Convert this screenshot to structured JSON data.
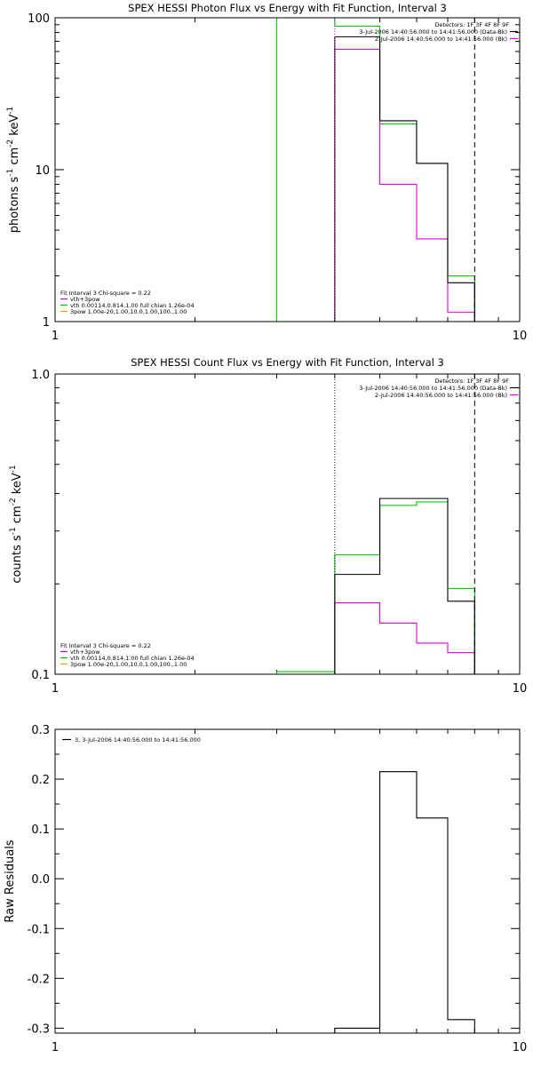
{
  "chart_data": [
    {
      "type": "line",
      "title": "SPEX HESSI Photon Flux vs Energy with Fit Function, Interval 3",
      "xlabel": "",
      "ylabel": "photons s⁻¹ cm⁻² keV⁻¹",
      "xscale": "log",
      "yscale": "log",
      "xlim": [
        1,
        10
      ],
      "ylim": [
        1,
        100
      ],
      "xtick_labels": [
        "1",
        "10"
      ],
      "ytick_labels": [
        "1",
        "10",
        "100"
      ],
      "x_edges": [
        3,
        4,
        5,
        6,
        7,
        8
      ],
      "series": [
        {
          "name": "3-Jul-2006 14:40:56.000 to 14:41:56.000 (Data-Bk)",
          "color": "#000000",
          "values": [
            null,
            75,
            21,
            11,
            1.8
          ]
        },
        {
          "name": "2-Jul-2006 14:40:56.000 to 14:41:56.000 (Bk)",
          "color": "#dd00dd",
          "values": [
            null,
            62,
            8,
            3.5,
            1.15
          ]
        },
        {
          "name": "vth+3pow",
          "color": "#00cc00",
          "values": [
            200,
            88,
            20,
            11,
            2
          ]
        }
      ],
      "legend_top": {
        "detectors": "Detectors: 1F 3F 4F 8F 9F",
        "placement": "top-right"
      },
      "legend_bottom": {
        "placement": "bottom-left",
        "header": "Fit Interval 3   Chi-square = 0.22",
        "entries": [
          {
            "label": "vth+3pow",
            "color": "#dd00dd"
          },
          {
            "label": "vth 0.00114,0.814,1.00   full chian 1.26e-04",
            "color": "#00cc00"
          },
          {
            "label": "3pow 1.00e-20,1.00,10.0,1.00,100.,1.00",
            "color": "#ccaa00"
          }
        ]
      },
      "markers": [
        {
          "x": 4,
          "style": "dotted",
          "color": "#dd00dd"
        },
        {
          "x": 8,
          "style": "dashed",
          "color": "#000000"
        }
      ]
    },
    {
      "type": "line",
      "title": "SPEX HESSI Count Flux vs Energy with Fit Function, Interval 3",
      "xlabel": "",
      "ylabel": "counts s⁻¹ cm⁻² keV⁻¹",
      "xscale": "log",
      "yscale": "log",
      "xlim": [
        1,
        10
      ],
      "ylim": [
        0.1,
        1.0
      ],
      "xtick_labels": [
        "1",
        "10"
      ],
      "ytick_labels": [
        "0.1",
        "1.0"
      ],
      "x_edges": [
        3,
        4,
        5,
        6,
        7,
        8
      ],
      "series": [
        {
          "name": "3-Jul-2006 14:40:56.000 to 14:41:56.000 (Data-Bk)",
          "color": "#000000",
          "values": [
            null,
            0.215,
            0.385,
            0.385,
            0.175
          ]
        },
        {
          "name": "2-Jul-2006 14:40:56.000 to 14:41:56.000 (Bk)",
          "color": "#dd00dd",
          "values": [
            null,
            0.173,
            0.148,
            0.127,
            0.118
          ]
        },
        {
          "name": "vth+3pow",
          "color": "#00cc00",
          "values": [
            0.102,
            0.25,
            0.365,
            0.375,
            0.193
          ]
        }
      ],
      "legend_top": {
        "detectors": "Detectors: 1F 3F 4F 8F 9F",
        "placement": "top-right"
      },
      "legend_bottom": {
        "placement": "bottom-left",
        "header": "Fit Interval 3   Chi-square = 0.22",
        "entries": [
          {
            "label": "vth+3pow",
            "color": "#dd00dd"
          },
          {
            "label": "vth 0.00114,0.814,1.00   full chian 1.26e-04",
            "color": "#00cc00"
          },
          {
            "label": "3pow 1.00e-20,1.00,10.0,1.00,100.,1.00",
            "color": "#ccaa00"
          }
        ]
      },
      "markers": [
        {
          "x": 4,
          "style": "dotted",
          "color": "#000000"
        },
        {
          "x": 8,
          "style": "dashed",
          "color": "#000000"
        }
      ]
    },
    {
      "type": "line",
      "title": "",
      "xlabel": "",
      "ylabel": "Raw Residuals",
      "xscale": "log",
      "yscale": "linear",
      "xlim": [
        1,
        10
      ],
      "ylim": [
        -0.31,
        0.3
      ],
      "xtick_labels": [
        "1",
        "10"
      ],
      "ytick_labels": [
        "0.3",
        "0.2",
        "0.1",
        "0.0",
        "-0.1",
        "-0.2",
        "-0.3"
      ],
      "ytick_values": [
        0.3,
        0.2,
        0.1,
        0.0,
        -0.1,
        -0.2,
        -0.3
      ],
      "x_edges": [
        4,
        5,
        6,
        7,
        8
      ],
      "series": [
        {
          "name": "3, 3-Jul-2006 14:40:56.000 to 14:41:56.000",
          "color": "#000000",
          "values": [
            -0.3,
            0.215,
            0.122,
            -0.283
          ]
        }
      ],
      "legend_top": {
        "placement": "top-left"
      }
    }
  ]
}
